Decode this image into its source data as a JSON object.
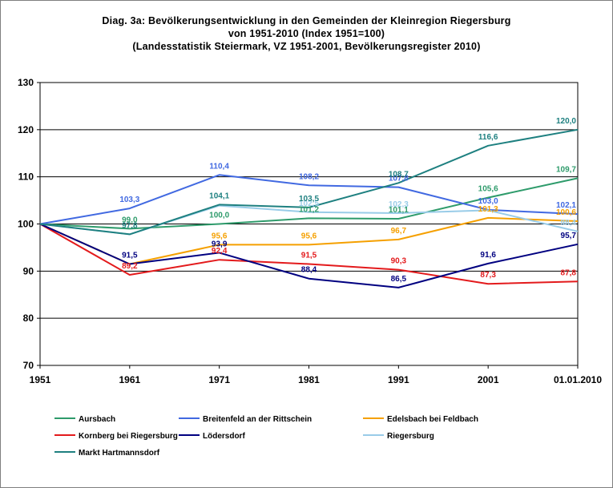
{
  "chart_data": {
    "type": "line",
    "title": "Diag. 3a: Bevölkerungsentwicklung  in den Gemeinden der Kleinregion Riegersburg",
    "subtitle": "von 1951-2010  (Index 1951=100)",
    "subtitle2": "(Landesstatistik  Steiermark,  VZ 1951-2001,  Bevölkerungsregister  2010)",
    "categories": [
      "1951",
      "1961",
      "1971",
      "1981",
      "1991",
      "2001",
      "01.01.2010"
    ],
    "ylim": [
      70,
      130
    ],
    "yticks": [
      "70",
      "80",
      "90",
      "100",
      "110",
      "120",
      "130"
    ],
    "ytick_values": [
      70,
      80,
      90,
      100,
      110,
      120,
      130
    ],
    "grid": "horizontal",
    "legend_position": "bottom",
    "series": [
      {
        "name": "Aursbach",
        "color": "#2e9b6b",
        "values": [
          100,
          99.0,
          100.0,
          101.2,
          101.1,
          105.6,
          109.7
        ],
        "labels": [
          "",
          "99,0",
          "100,0",
          "101,2",
          "101,1",
          "105,6",
          "109,7"
        ]
      },
      {
        "name": "Breitenfeld an der Rittschein",
        "color": "#4169e1",
        "values": [
          100,
          103.3,
          110.4,
          108.2,
          107.8,
          103.0,
          102.1
        ],
        "labels": [
          "",
          "103,3",
          "110,4",
          "108,2",
          "107,8",
          "103,0",
          "102,1"
        ]
      },
      {
        "name": "Edelsbach bei Feldbach",
        "color": "#f5a000",
        "values": [
          100,
          91.5,
          95.6,
          95.6,
          96.7,
          101.3,
          100.6
        ],
        "labels": [
          "",
          "",
          "95,6",
          "95,6",
          "96,7",
          "101,3",
          "100,6"
        ]
      },
      {
        "name": "Kornberg bei Riegersburg",
        "color": "#e31a1c",
        "values": [
          100,
          89.2,
          92.4,
          91.5,
          90.3,
          87.3,
          87.8
        ],
        "labels": [
          "",
          "89,2",
          "92,4",
          "91,5",
          "90,3",
          "87,3",
          "87,8"
        ]
      },
      {
        "name": "Lödersdorf",
        "color": "#000080",
        "values": [
          100,
          91.5,
          93.9,
          88.4,
          86.5,
          91.6,
          95.7
        ],
        "labels": [
          "",
          "91,5",
          "93,9",
          "88,4",
          "86,5",
          "91,6",
          "95,7"
        ]
      },
      {
        "name": "Riegersburg",
        "color": "#99cce8",
        "values": [
          100,
          97.8,
          103.9,
          102.5,
          102.3,
          102.9,
          98.4
        ],
        "labels": [
          "",
          "",
          "",
          "102,5",
          "102,3",
          "",
          "98,4"
        ]
      },
      {
        "name": "Markt Hartmannsdorf",
        "color": "#1e8080",
        "values": [
          100,
          97.8,
          104.1,
          103.5,
          108.7,
          116.6,
          120.0
        ],
        "labels": [
          "",
          "97,8",
          "104,1",
          "103,5",
          "108,7",
          "116,6",
          "120,0"
        ]
      }
    ]
  }
}
